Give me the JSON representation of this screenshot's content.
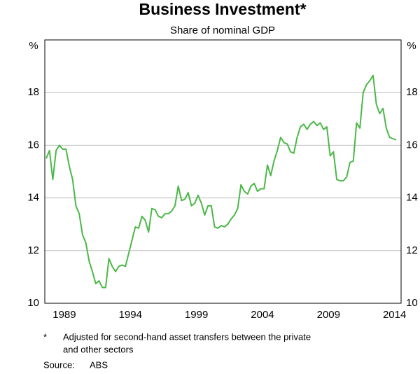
{
  "chart_data": {
    "type": "line",
    "title": "Business Investment*",
    "subtitle": "Share of nominal GDP",
    "y_label": "%",
    "categories": [
      null,
      null,
      null,
      null,
      null,
      "1989",
      null,
      null,
      null,
      null,
      null,
      null,
      null,
      null,
      null,
      null,
      null,
      null,
      null,
      null,
      null,
      null,
      null,
      null,
      null,
      "1994",
      null,
      null,
      null,
      null,
      null,
      null,
      null,
      null,
      null,
      null,
      null,
      null,
      null,
      null,
      null,
      null,
      null,
      null,
      null,
      "1999",
      null,
      null,
      null,
      null,
      null,
      null,
      null,
      null,
      null,
      null,
      null,
      null,
      null,
      null,
      null,
      null,
      null,
      null,
      null,
      "2004",
      null,
      null,
      null,
      null,
      null,
      null,
      null,
      null,
      null,
      null,
      null,
      null,
      null,
      null,
      null,
      null,
      null,
      null,
      null,
      "2009",
      null,
      null,
      null,
      null,
      null,
      null,
      null,
      null,
      null,
      null,
      null,
      null,
      null,
      null,
      null,
      null,
      null,
      null,
      null,
      "2014",
      null
    ],
    "series": [
      {
        "name": "Business investment",
        "color": "#4cb848",
        "values": [
          15.5,
          15.8,
          14.7,
          15.8,
          16.0,
          15.85,
          15.85,
          15.2,
          14.7,
          13.7,
          13.4,
          12.6,
          12.3,
          11.6,
          11.2,
          10.75,
          10.85,
          10.6,
          10.6,
          11.7,
          11.4,
          11.2,
          11.4,
          11.45,
          11.4,
          11.9,
          12.4,
          12.9,
          12.85,
          13.3,
          13.15,
          12.7,
          13.6,
          13.55,
          13.3,
          13.25,
          13.4,
          13.4,
          13.5,
          13.7,
          14.45,
          13.9,
          13.95,
          14.2,
          13.7,
          13.8,
          14.1,
          13.8,
          13.35,
          13.7,
          13.7,
          12.9,
          12.85,
          12.95,
          12.9,
          13.0,
          13.2,
          13.35,
          13.6,
          14.5,
          14.25,
          14.15,
          14.45,
          14.55,
          14.25,
          14.35,
          14.35,
          15.25,
          14.85,
          15.4,
          15.8,
          16.3,
          16.1,
          16.05,
          15.75,
          15.7,
          16.3,
          16.7,
          16.8,
          16.6,
          16.8,
          16.9,
          16.75,
          16.85,
          16.6,
          16.7,
          15.6,
          15.75,
          14.7,
          14.65,
          14.65,
          14.8,
          15.35,
          15.4,
          16.85,
          16.65,
          18.0,
          18.3,
          18.45,
          18.65,
          17.55,
          17.2,
          17.4,
          16.65,
          16.3,
          16.25,
          16.2
        ]
      }
    ],
    "ylim": [
      10,
      20
    ],
    "yticks": [
      10,
      12,
      14,
      16,
      18
    ],
    "grid": true,
    "footnote_marker": "*",
    "footnote": [
      "Adjusted for second-hand asset transfers between the private",
      "and other sectors"
    ],
    "source_label": "Source:",
    "source": "ABS"
  }
}
